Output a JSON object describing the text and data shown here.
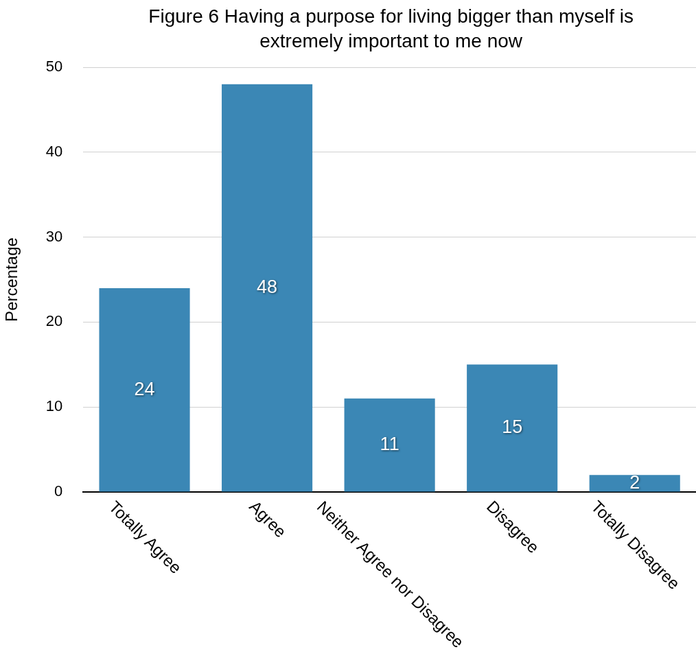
{
  "chart_data": {
    "type": "bar",
    "title": "Figure 6 Having a purpose for living bigger than myself is extremely important to me now",
    "ylabel": "Percentage",
    "categories": [
      "Totally Agree",
      "Agree",
      "Neither Agree nor Disagree",
      "Disagree",
      "Totally Disagree"
    ],
    "values": [
      24,
      48,
      11,
      15,
      2
    ],
    "color": "#3b87b5",
    "ylim": [
      0,
      50
    ],
    "yticks": [
      0,
      10,
      20,
      30,
      40,
      50
    ],
    "grid": "y",
    "data_labels": true
  }
}
